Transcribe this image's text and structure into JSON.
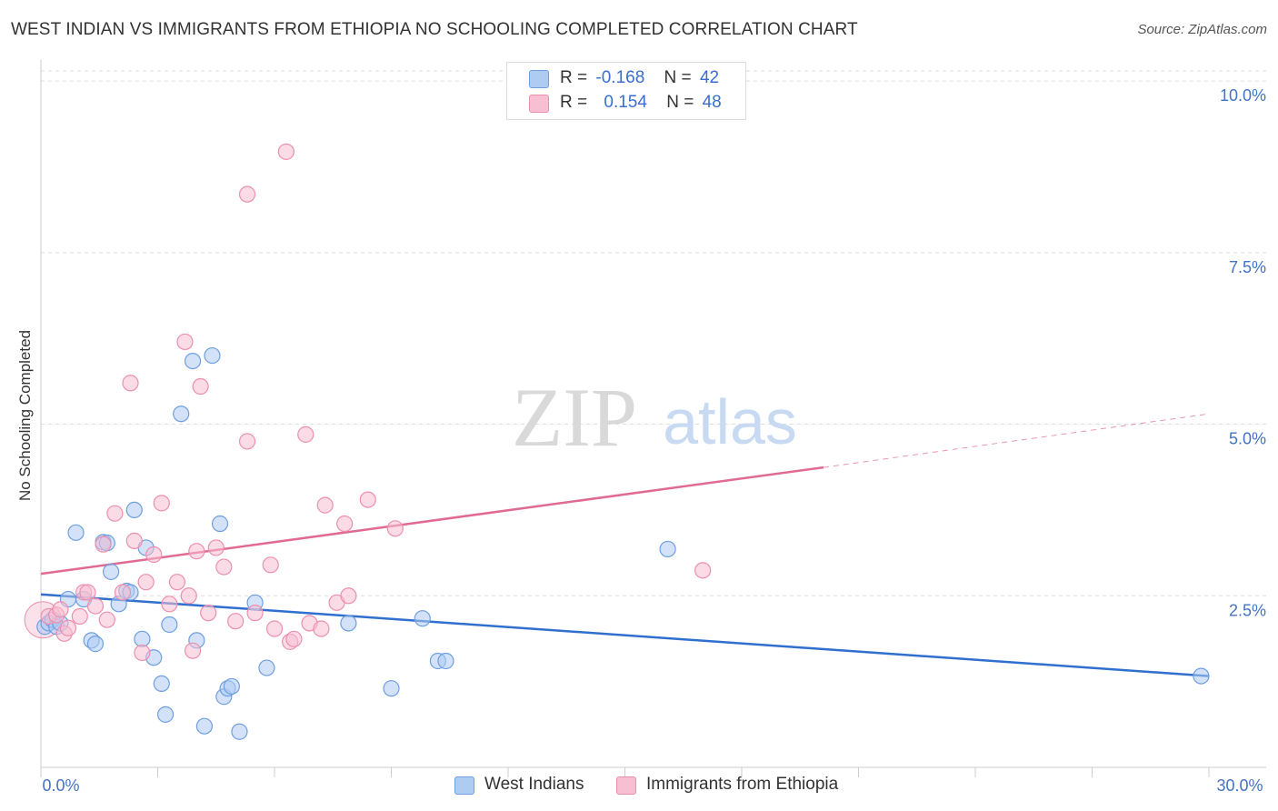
{
  "title": "WEST INDIAN VS IMMIGRANTS FROM ETHIOPIA NO SCHOOLING COMPLETED CORRELATION CHART",
  "source": "Source: ZipAtlas.com",
  "watermark": {
    "zip": "ZIP",
    "atlas": "atlas"
  },
  "legend_top": {
    "rows": [
      {
        "r_label": "R =",
        "r_value": "-0.168",
        "n_label": "N =",
        "n_value": "42"
      },
      {
        "r_label": "R =",
        "r_value": "0.154",
        "n_label": "N =",
        "n_value": "48"
      }
    ]
  },
  "legend_bottom": [
    "West Indians",
    "Immigrants from Ethiopia"
  ],
  "colors": {
    "blue_fill": "#aecbf2",
    "blue_stroke": "#6e9fe0",
    "blue_line": "#2f6fce",
    "pink_fill": "#f7bfd1",
    "pink_stroke": "#ec8fae",
    "pink_line": "#e06a93",
    "tick_text": "#4472c4",
    "grid": "#dddddd"
  },
  "chart_data": {
    "type": "scatter",
    "title": "WEST INDIAN VS IMMIGRANTS FROM ETHIOPIA NO SCHOOLING COMPLETED CORRELATION CHART",
    "xlabel": "",
    "ylabel": "No Schooling Completed",
    "xlim": [
      0,
      30
    ],
    "ylim": [
      0,
      10.2
    ],
    "x_tick_labels": [
      "0.0%",
      "30.0%"
    ],
    "y_ticks": [
      2.5,
      5.0,
      7.5,
      10.0
    ],
    "y_tick_labels": [
      "2.5%",
      "5.0%",
      "7.5%",
      "10.0%"
    ],
    "grid": "horizontal dashed",
    "legend_position": "top-center and bottom",
    "series": [
      {
        "name": "West Indians",
        "r": -0.168,
        "n": 42,
        "trend": {
          "x0": 0,
          "y0": 2.52,
          "x1": 30,
          "y1": 1.33
        },
        "points": [
          [
            0.1,
            2.05
          ],
          [
            0.2,
            2.1
          ],
          [
            0.3,
            2.15
          ],
          [
            0.4,
            2.05
          ],
          [
            0.5,
            2.1
          ],
          [
            0.9,
            3.42
          ],
          [
            0.7,
            2.45
          ],
          [
            1.1,
            2.45
          ],
          [
            1.3,
            1.85
          ],
          [
            1.4,
            1.8
          ],
          [
            1.6,
            3.28
          ],
          [
            1.7,
            3.27
          ],
          [
            1.8,
            2.85
          ],
          [
            2.0,
            2.38
          ],
          [
            2.2,
            2.57
          ],
          [
            2.3,
            2.55
          ],
          [
            2.4,
            3.75
          ],
          [
            2.6,
            1.87
          ],
          [
            2.7,
            3.2
          ],
          [
            2.9,
            1.6
          ],
          [
            3.1,
            1.22
          ],
          [
            3.2,
            0.77
          ],
          [
            3.3,
            2.08
          ],
          [
            3.6,
            5.15
          ],
          [
            3.9,
            5.92
          ],
          [
            4.0,
            1.85
          ],
          [
            4.2,
            0.6
          ],
          [
            4.4,
            6.0
          ],
          [
            4.6,
            3.55
          ],
          [
            4.7,
            1.03
          ],
          [
            4.8,
            1.15
          ],
          [
            4.9,
            1.18
          ],
          [
            5.1,
            0.52
          ],
          [
            5.5,
            2.4
          ],
          [
            5.8,
            1.45
          ],
          [
            7.9,
            2.1
          ],
          [
            9.0,
            1.15
          ],
          [
            9.8,
            2.17
          ],
          [
            10.2,
            1.55
          ],
          [
            10.4,
            1.55
          ],
          [
            16.1,
            3.18
          ],
          [
            29.8,
            1.33
          ]
        ]
      },
      {
        "name": "Immigrants from Ethiopia",
        "r": 0.154,
        "n": 48,
        "trend": {
          "x0": 0,
          "y0": 2.82,
          "x1": 20.1,
          "y1": 4.37
        },
        "trend_dashed": {
          "x0": 20.1,
          "y0": 4.37,
          "x1": 30,
          "y1": 5.15
        },
        "points": [
          [
            0.2,
            2.2
          ],
          [
            0.4,
            2.22
          ],
          [
            0.5,
            2.3
          ],
          [
            0.6,
            1.95
          ],
          [
            0.7,
            2.03
          ],
          [
            1.0,
            2.2
          ],
          [
            1.1,
            2.55
          ],
          [
            1.2,
            2.55
          ],
          [
            1.4,
            2.35
          ],
          [
            1.6,
            3.25
          ],
          [
            1.7,
            2.15
          ],
          [
            1.9,
            3.7
          ],
          [
            2.1,
            2.55
          ],
          [
            2.3,
            5.6
          ],
          [
            2.4,
            3.3
          ],
          [
            2.6,
            1.67
          ],
          [
            2.7,
            2.7
          ],
          [
            2.9,
            3.1
          ],
          [
            3.1,
            3.85
          ],
          [
            3.3,
            2.38
          ],
          [
            3.5,
            2.7
          ],
          [
            3.7,
            6.2
          ],
          [
            3.8,
            2.5
          ],
          [
            3.9,
            1.7
          ],
          [
            4.0,
            3.15
          ],
          [
            4.1,
            5.55
          ],
          [
            4.3,
            2.25
          ],
          [
            4.5,
            3.2
          ],
          [
            4.7,
            2.92
          ],
          [
            5.0,
            2.13
          ],
          [
            5.3,
            4.75
          ],
          [
            5.5,
            2.25
          ],
          [
            5.9,
            2.95
          ],
          [
            6.0,
            2.02
          ],
          [
            6.3,
            8.97
          ],
          [
            6.4,
            1.83
          ],
          [
            6.5,
            1.87
          ],
          [
            6.8,
            4.85
          ],
          [
            6.9,
            2.1
          ],
          [
            7.2,
            2.02
          ],
          [
            7.3,
            3.82
          ],
          [
            7.6,
            2.4
          ],
          [
            7.8,
            3.55
          ],
          [
            7.9,
            2.5
          ],
          [
            8.4,
            3.9
          ],
          [
            9.1,
            3.48
          ],
          [
            5.3,
            8.35
          ],
          [
            17.0,
            2.87
          ]
        ]
      }
    ]
  }
}
